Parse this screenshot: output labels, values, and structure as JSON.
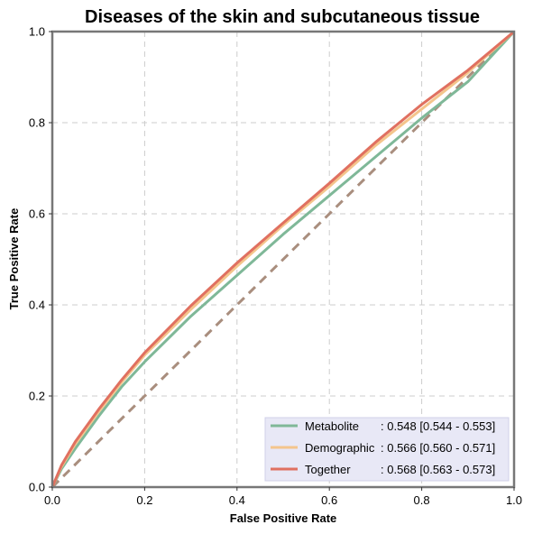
{
  "chart_data": {
    "type": "line",
    "title": "Diseases of the skin and subcutaneous tissue",
    "xlabel": "False Positive Rate",
    "ylabel": "True Positive Rate",
    "xlim": [
      0,
      1
    ],
    "ylim": [
      0,
      1
    ],
    "xticks": [
      0,
      0.2,
      0.4,
      0.6,
      0.8,
      1
    ],
    "yticks": [
      0,
      0.2,
      0.4,
      0.6,
      0.8,
      1
    ],
    "xtick_labels": [
      "0.0",
      "0.2",
      "0.4",
      "0.6",
      "0.8",
      "1.0"
    ],
    "ytick_labels": [
      "0.0",
      "0.2",
      "0.4",
      "0.6",
      "0.8",
      "1.0"
    ],
    "grid": true,
    "legend_position": "bottom-right",
    "series": [
      {
        "name": "Metabolite",
        "stat": ": 0.548 [0.544 - 0.553]",
        "color": "#7fb898",
        "x": [
          0,
          0.02,
          0.05,
          0.1,
          0.15,
          0.2,
          0.3,
          0.4,
          0.5,
          0.6,
          0.7,
          0.8,
          0.9,
          1.0
        ],
        "y": [
          0,
          0.04,
          0.085,
          0.155,
          0.22,
          0.275,
          0.375,
          0.465,
          0.555,
          0.64,
          0.725,
          0.81,
          0.89,
          1.0
        ]
      },
      {
        "name": "Demographic",
        "stat": ": 0.566 [0.560 - 0.571]",
        "color": "#f4c58c",
        "x": [
          0,
          0.02,
          0.05,
          0.1,
          0.15,
          0.2,
          0.3,
          0.4,
          0.5,
          0.6,
          0.7,
          0.8,
          0.9,
          1.0
        ],
        "y": [
          0,
          0.045,
          0.095,
          0.165,
          0.23,
          0.29,
          0.39,
          0.485,
          0.575,
          0.66,
          0.75,
          0.83,
          0.91,
          1.0
        ]
      },
      {
        "name": "Together",
        "stat": ": 0.568 [0.563 - 0.573]",
        "color": "#e07060",
        "x": [
          0,
          0.02,
          0.05,
          0.1,
          0.15,
          0.2,
          0.3,
          0.4,
          0.5,
          0.6,
          0.7,
          0.8,
          0.9,
          1.0
        ],
        "y": [
          0,
          0.048,
          0.1,
          0.17,
          0.235,
          0.295,
          0.398,
          0.492,
          0.58,
          0.667,
          0.757,
          0.84,
          0.915,
          1.0
        ]
      }
    ],
    "reference_line": {
      "color": "#a98e7e",
      "x": [
        0,
        1
      ],
      "y": [
        0,
        1
      ]
    }
  },
  "colors": {
    "frame": "#777777",
    "grid": "#cccccc",
    "legend_bg": "#e8e8f6",
    "legend_border": "#d0d0e8"
  }
}
